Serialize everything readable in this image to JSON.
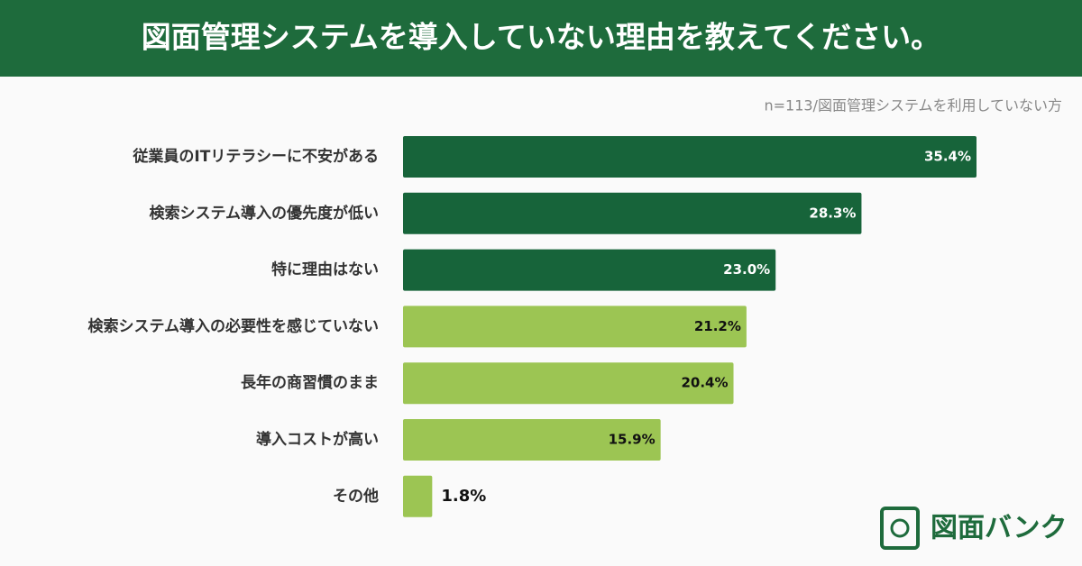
{
  "chart_data": {
    "type": "hbar",
    "title": "図面管理システムを導入していない理由を教えてください。",
    "subtitle": "n=113/図面管理システムを利用していない方",
    "categories": [
      "従業員のITリテラシーに不安がある",
      "検索システム導入の優先度が低い",
      "特に理由はない",
      "検索システム導入の必要性を感じていない",
      "長年の商習慣のまま",
      "導入コストが高い",
      "その他"
    ],
    "values": [
      35.4,
      28.3,
      23.0,
      21.2,
      20.4,
      15.9,
      1.8
    ],
    "value_labels": [
      "35.4%",
      "28.3%",
      "23.0%",
      "21.2%",
      "20.4%",
      "15.9%",
      "1.8%"
    ],
    "colors": [
      "#17643a",
      "#17643a",
      "#17643a",
      "#9cc553",
      "#9cc553",
      "#9cc553",
      "#9cc553"
    ]
  },
  "logo": "図面バンク"
}
